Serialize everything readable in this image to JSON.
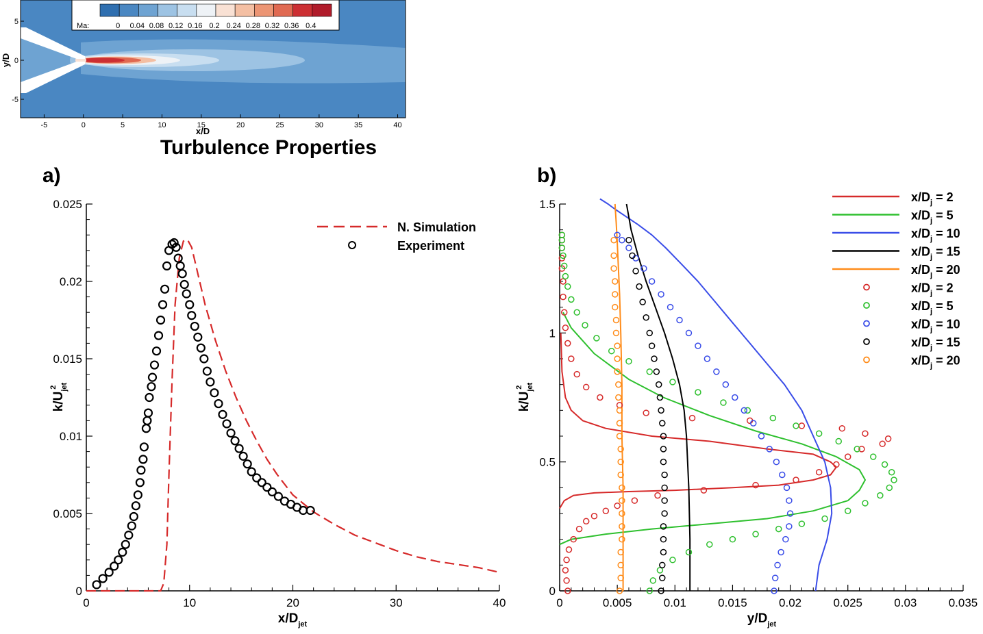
{
  "section_title": "Turbulence Properties",
  "contour": {
    "colorbar_label": "Ma:",
    "colorbar_ticks": [
      "0",
      "0.04",
      "0.08",
      "0.12",
      "0.16",
      "0.2",
      "0.24",
      "0.28",
      "0.32",
      "0.36",
      "0.4"
    ],
    "colorbar_colors": [
      "#2f6fb0",
      "#4a87c2",
      "#6ea3d2",
      "#9dc3e3",
      "#c8def0",
      "#eef2f6",
      "#f9e1d4",
      "#f4bfa3",
      "#ec9574",
      "#e06a52",
      "#cc2f33",
      "#b01b2a"
    ],
    "xlabel": "x/D",
    "ylabel": "y/D",
    "x_ticks": [
      "-5",
      "0",
      "5",
      "10",
      "15",
      "20",
      "25",
      "30",
      "35",
      "40"
    ],
    "y_ticks": [
      "5",
      "0",
      "-5"
    ],
    "background_color": "#4a87c2"
  },
  "chart_data": [
    {
      "type": "line",
      "panel_label": "a)",
      "xlabel": "x/D",
      "xlabel_sub": "jet",
      "ylabel": "k/U",
      "ylabel_sub": "jet",
      "ylabel_sup": "2",
      "xlim": [
        0,
        40
      ],
      "ylim": [
        0,
        0.025
      ],
      "x_ticks": [
        0,
        10,
        20,
        30,
        40
      ],
      "y_ticks": [
        0,
        0.005,
        0.01,
        0.015,
        0.02,
        0.025
      ],
      "x_tick_labels": [
        "0",
        "10",
        "20",
        "30",
        "40"
      ],
      "y_tick_labels": [
        "0",
        "0.005",
        "0.01",
        "0.015",
        "0.02",
        "0.025"
      ],
      "legend_position": "top-right",
      "series": [
        {
          "name": "N. Simulation",
          "style": "dashed",
          "color": "#d62a2a",
          "x": [
            0,
            4,
            7.2,
            7.5,
            7.8,
            8.0,
            8.3,
            8.6,
            9.0,
            9.4,
            9.8,
            10.2,
            10.8,
            11.5,
            12.5,
            13.5,
            14.5,
            15.5,
            16.5,
            17.5,
            18.5,
            20,
            22,
            24,
            26,
            28,
            30,
            32,
            34,
            36,
            38,
            40
          ],
          "y": [
            0,
            0,
            0,
            0.0005,
            0.003,
            0.0075,
            0.0135,
            0.0185,
            0.0215,
            0.0226,
            0.0227,
            0.0222,
            0.0205,
            0.0185,
            0.0162,
            0.0142,
            0.0125,
            0.011,
            0.0097,
            0.0085,
            0.0075,
            0.0062,
            0.0051,
            0.0043,
            0.0036,
            0.0031,
            0.0026,
            0.0022,
            0.0019,
            0.0017,
            0.0015,
            0.0012
          ]
        },
        {
          "name": "Experiment",
          "style": "markers",
          "color": "#000000",
          "x": [
            1.0,
            1.6,
            2.2,
            2.7,
            3.1,
            3.5,
            3.8,
            4.1,
            4.4,
            4.6,
            4.8,
            5.0,
            5.2,
            5.3,
            5.5,
            5.6,
            5.8,
            5.9,
            6.0,
            6.1,
            6.3,
            6.4,
            6.6,
            6.8,
            7.0,
            7.2,
            7.4,
            7.6,
            7.8,
            8.0,
            8.3,
            8.5,
            8.7,
            8.9,
            9.1,
            9.3,
            9.5,
            9.7,
            10.0,
            10.2,
            10.5,
            10.8,
            11.1,
            11.4,
            11.7,
            12.0,
            12.4,
            12.8,
            13.2,
            13.6,
            14.0,
            14.4,
            14.8,
            15.2,
            15.6,
            16.0,
            16.5,
            17.0,
            17.5,
            18.0,
            18.6,
            19.2,
            19.8,
            20.4,
            21.0,
            21.7
          ],
          "y": [
            0.0004,
            0.0008,
            0.0012,
            0.0016,
            0.002,
            0.0025,
            0.003,
            0.0036,
            0.0042,
            0.0048,
            0.0055,
            0.0062,
            0.007,
            0.0078,
            0.0085,
            0.0093,
            0.0105,
            0.011,
            0.0115,
            0.0125,
            0.0132,
            0.0138,
            0.0146,
            0.0155,
            0.0165,
            0.0175,
            0.0185,
            0.0195,
            0.021,
            0.022,
            0.0224,
            0.0225,
            0.0222,
            0.0215,
            0.021,
            0.0205,
            0.0198,
            0.0192,
            0.0185,
            0.0178,
            0.0171,
            0.0164,
            0.0157,
            0.015,
            0.0142,
            0.0135,
            0.0128,
            0.0121,
            0.0114,
            0.0108,
            0.0102,
            0.0097,
            0.0092,
            0.0087,
            0.0082,
            0.0077,
            0.0073,
            0.007,
            0.0067,
            0.0064,
            0.0061,
            0.0058,
            0.0056,
            0.0054,
            0.0052,
            0.0052
          ]
        }
      ]
    },
    {
      "type": "line",
      "panel_label": "b)",
      "xlabel": "y/D",
      "xlabel_sub": "jet",
      "ylabel": "k/U",
      "ylabel_sub": "jet",
      "ylabel_sup": "2",
      "xlim": [
        0,
        0.035
      ],
      "ylim": [
        0,
        1.5
      ],
      "x_ticks": [
        0,
        0.005,
        0.01,
        0.015,
        0.02,
        0.025,
        0.03,
        0.035
      ],
      "y_ticks": [
        0,
        0.5,
        1,
        1.5
      ],
      "x_tick_labels": [
        "0",
        "0.005",
        "0.01",
        "0.015",
        "0.02",
        "0.025",
        "0.03",
        "0.035"
      ],
      "y_tick_labels": [
        "0",
        "0.5",
        "1",
        "1.5"
      ],
      "legend_position": "top-right",
      "series": [
        {
          "name": "x/D",
          "name_sub": "j",
          "name_value": " = 2",
          "style": "line",
          "color": "#d62a2a",
          "x": [
            0.0,
            0.0004,
            0.0012,
            0.003,
            0.006,
            0.01,
            0.015,
            0.019,
            0.022,
            0.0235,
            0.024,
            0.0235,
            0.022,
            0.018,
            0.013,
            0.008,
            0.004,
            0.002,
            0.001,
            0.0005,
            0.0002,
            0.0001
          ],
          "y": [
            0.32,
            0.35,
            0.37,
            0.38,
            0.385,
            0.39,
            0.4,
            0.41,
            0.43,
            0.45,
            0.48,
            0.5,
            0.53,
            0.55,
            0.58,
            0.6,
            0.63,
            0.66,
            0.7,
            0.75,
            0.85,
            1.0
          ]
        },
        {
          "name": "x/D",
          "name_sub": "j",
          "name_value": " = 5",
          "style": "line",
          "color": "#2ec02e",
          "x": [
            0.0,
            0.001,
            0.004,
            0.008,
            0.013,
            0.018,
            0.022,
            0.025,
            0.026,
            0.0265,
            0.026,
            0.024,
            0.021,
            0.017,
            0.013,
            0.009,
            0.006,
            0.003,
            0.001,
            0.0003
          ],
          "y": [
            0.18,
            0.2,
            0.22,
            0.24,
            0.26,
            0.28,
            0.31,
            0.35,
            0.39,
            0.43,
            0.47,
            0.52,
            0.57,
            0.62,
            0.68,
            0.75,
            0.82,
            0.92,
            1.02,
            1.08
          ]
        },
        {
          "name": "x/D",
          "name_sub": "j",
          "name_value": " = 10",
          "style": "line",
          "color": "#3a4de8",
          "x": [
            0.0222,
            0.0225,
            0.0232,
            0.0236,
            0.0235,
            0.023,
            0.022,
            0.021,
            0.0195,
            0.018,
            0.0165,
            0.015,
            0.0135,
            0.012,
            0.0105,
            0.0092,
            0.008,
            0.0068,
            0.0058,
            0.0048,
            0.0042,
            0.0035
          ],
          "y": [
            0,
            0.1,
            0.2,
            0.3,
            0.4,
            0.5,
            0.6,
            0.7,
            0.8,
            0.88,
            0.96,
            1.04,
            1.12,
            1.2,
            1.27,
            1.33,
            1.38,
            1.42,
            1.45,
            1.48,
            1.5,
            1.52
          ]
        },
        {
          "name": "x/D",
          "name_sub": "j",
          "name_value": " = 15",
          "style": "line",
          "color": "#000000",
          "x": [
            0.0113,
            0.0113,
            0.0112,
            0.0111,
            0.011,
            0.0108,
            0.0104,
            0.0098,
            0.0091,
            0.0083,
            0.0075,
            0.0068,
            0.0062,
            0.0058
          ],
          "y": [
            0,
            0.2,
            0.4,
            0.5,
            0.6,
            0.7,
            0.8,
            0.9,
            1.0,
            1.1,
            1.2,
            1.3,
            1.4,
            1.5
          ]
        },
        {
          "name": "x/D",
          "name_sub": "j",
          "name_value": " = 20",
          "style": "line",
          "color": "#ff8c1a",
          "x": [
            0.0055,
            0.0055,
            0.0055,
            0.0054,
            0.0054,
            0.0053,
            0.0052,
            0.0051,
            0.005,
            0.0049,
            0.0048
          ],
          "y": [
            0,
            0.2,
            0.4,
            0.6,
            0.8,
            1.0,
            1.15,
            1.25,
            1.35,
            1.43,
            1.5
          ]
        },
        {
          "name": "x/D",
          "name_sub": "j",
          "name_value": " = 2",
          "style": "markers",
          "color": "#d62a2a",
          "x": [
            0.0007,
            0.0006,
            0.0005,
            0.0006,
            0.0008,
            0.0012,
            0.0017,
            0.0023,
            0.003,
            0.004,
            0.005,
            0.0065,
            0.0085,
            0.0125,
            0.017,
            0.0205,
            0.0225,
            0.024,
            0.025,
            0.0262,
            0.028,
            0.0285,
            0.0265,
            0.0245,
            0.021,
            0.0165,
            0.0115,
            0.0075,
            0.0052,
            0.0035,
            0.0023,
            0.0015,
            0.001,
            0.0007,
            0.0005,
            0.0004,
            0.0003,
            0.0003,
            0.0002,
            0.0002,
            0.0002,
            0.0002,
            0.0002
          ],
          "y": [
            0.0,
            0.04,
            0.08,
            0.12,
            0.16,
            0.2,
            0.24,
            0.27,
            0.29,
            0.31,
            0.33,
            0.35,
            0.37,
            0.39,
            0.41,
            0.43,
            0.46,
            0.49,
            0.52,
            0.55,
            0.57,
            0.59,
            0.61,
            0.63,
            0.64,
            0.66,
            0.67,
            0.69,
            0.72,
            0.75,
            0.79,
            0.84,
            0.9,
            0.96,
            1.02,
            1.08,
            1.14,
            1.2,
            1.25,
            1.29,
            1.33,
            1.36,
            1.38
          ]
        },
        {
          "name": "x/D",
          "name_sub": "j",
          "name_value": " = 5",
          "style": "markers",
          "color": "#2ec02e",
          "x": [
            0.0078,
            0.0081,
            0.0087,
            0.0098,
            0.0112,
            0.013,
            0.015,
            0.017,
            0.019,
            0.021,
            0.023,
            0.025,
            0.0265,
            0.0278,
            0.0286,
            0.029,
            0.0288,
            0.0282,
            0.0272,
            0.0258,
            0.0242,
            0.0225,
            0.0205,
            0.0185,
            0.0163,
            0.0142,
            0.012,
            0.0098,
            0.0078,
            0.006,
            0.0045,
            0.0032,
            0.0022,
            0.0015,
            0.001,
            0.0007,
            0.0005,
            0.0004,
            0.0003,
            0.0002,
            0.0002,
            0.0002
          ],
          "y": [
            0.0,
            0.04,
            0.08,
            0.12,
            0.15,
            0.18,
            0.2,
            0.22,
            0.24,
            0.26,
            0.28,
            0.31,
            0.34,
            0.37,
            0.4,
            0.43,
            0.46,
            0.49,
            0.52,
            0.55,
            0.58,
            0.61,
            0.64,
            0.67,
            0.7,
            0.73,
            0.77,
            0.81,
            0.85,
            0.89,
            0.93,
            0.98,
            1.03,
            1.08,
            1.13,
            1.18,
            1.22,
            1.26,
            1.3,
            1.33,
            1.36,
            1.38
          ]
        },
        {
          "name": "x/D",
          "name_sub": "j",
          "name_value": " = 10",
          "style": "markers",
          "color": "#3a4de8",
          "x": [
            0.0186,
            0.0187,
            0.0189,
            0.0192,
            0.0196,
            0.0199,
            0.02,
            0.0199,
            0.0197,
            0.0193,
            0.0188,
            0.0182,
            0.0175,
            0.0168,
            0.016,
            0.0152,
            0.0144,
            0.0136,
            0.0128,
            0.012,
            0.0112,
            0.0104,
            0.0096,
            0.0088,
            0.008,
            0.0073,
            0.0066,
            0.006,
            0.0054,
            0.005
          ],
          "y": [
            0.0,
            0.05,
            0.1,
            0.15,
            0.2,
            0.25,
            0.3,
            0.35,
            0.4,
            0.45,
            0.5,
            0.55,
            0.6,
            0.65,
            0.7,
            0.75,
            0.8,
            0.85,
            0.9,
            0.95,
            1.0,
            1.05,
            1.1,
            1.15,
            1.2,
            1.25,
            1.29,
            1.33,
            1.36,
            1.38
          ]
        },
        {
          "name": "x/D",
          "name_sub": "j",
          "name_value": " = 15",
          "style": "markers",
          "color": "#000000",
          "x": [
            0.0088,
            0.0089,
            0.0089,
            0.009,
            0.009,
            0.009,
            0.0091,
            0.0091,
            0.0091,
            0.0091,
            0.009,
            0.009,
            0.009,
            0.0089,
            0.0088,
            0.0087,
            0.0086,
            0.0084,
            0.0082,
            0.008,
            0.0078,
            0.0075,
            0.0072,
            0.0069,
            0.0066,
            0.0063,
            0.006
          ],
          "y": [
            0.0,
            0.05,
            0.1,
            0.15,
            0.2,
            0.25,
            0.3,
            0.35,
            0.4,
            0.45,
            0.5,
            0.55,
            0.6,
            0.65,
            0.7,
            0.75,
            0.8,
            0.85,
            0.9,
            0.95,
            1.0,
            1.06,
            1.12,
            1.18,
            1.24,
            1.3,
            1.36
          ]
        },
        {
          "name": "x/D",
          "name_sub": "j",
          "name_value": " = 20",
          "style": "markers",
          "color": "#ff8c1a",
          "x": [
            0.0052,
            0.0053,
            0.0053,
            0.0053,
            0.0054,
            0.0054,
            0.0054,
            0.0054,
            0.0054,
            0.0053,
            0.0053,
            0.0053,
            0.0052,
            0.0052,
            0.0052,
            0.0051,
            0.0051,
            0.005,
            0.005,
            0.005,
            0.0049,
            0.0049,
            0.0048,
            0.0048,
            0.0048,
            0.0047,
            0.0047,
            0.0047
          ],
          "y": [
            0.0,
            0.05,
            0.1,
            0.15,
            0.2,
            0.25,
            0.3,
            0.35,
            0.4,
            0.45,
            0.5,
            0.55,
            0.6,
            0.65,
            0.7,
            0.75,
            0.8,
            0.85,
            0.9,
            0.95,
            1.0,
            1.05,
            1.1,
            1.15,
            1.2,
            1.25,
            1.3,
            1.36
          ]
        }
      ]
    }
  ]
}
